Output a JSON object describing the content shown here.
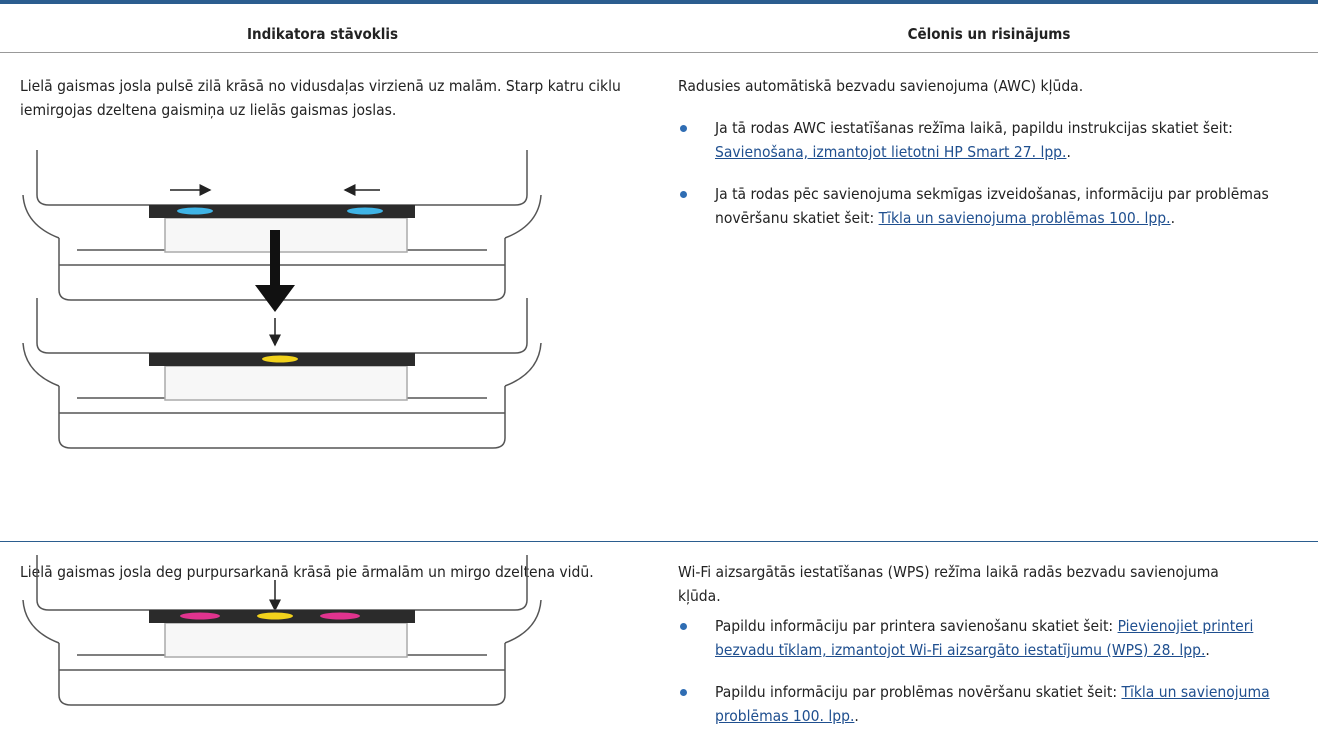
{
  "table": {
    "headers": [
      "Indikatora stāvoklis",
      "Cēlonis un risinājums"
    ],
    "rows": [
      {
        "state": "Lielā gaismas josla pulsē zilā krāsā no vidusdaļas virzienā uz malām. Starp katru ciklu iemirgojas dzeltena gaismiņa uz lielās gaismas joslas.",
        "cause": "Radusies automātiskā bezvadu savienojuma (AWC) kļūda.",
        "items": [
          {
            "text": "Ja tā rodas AWC iestatīšanas režīma laikā, papildu instrukcijas skatiet šeit: ",
            "link": "Savienošana, izmantojot lietotni HP Smart 27. lpp.",
            "end": "."
          },
          {
            "text": "Ja tā rodas pēc savienojuma sekmīgas izveidošanas, informāciju par problēmas novēršanu skatiet šeit: ",
            "link": "Tīkla un savienojuma problēmas 100. lpp.",
            "end": "."
          }
        ]
      },
      {
        "state": "Lielā gaismas josla deg purpursarkanā krāsā pie ārmalām un mirgo dzeltena vidū.",
        "cause": "Wi-Fi aizsargātās iestatīšanas (WPS) režīma laikā radās bezvadu savienojuma kļūda.",
        "items": [
          {
            "text": "Papildu informāciju par printera savienošanu skatiet šeit: ",
            "link": "Pievienojiet printeri bezvadu tīklam, izmantojot Wi-Fi aizsargāto iestatījumu (WPS) 28. lpp.",
            "end": "."
          },
          {
            "text": "Papildu informāciju par problēmas novēršanu skatiet šeit: ",
            "link": "Tīkla un savienojuma problēmas 100. lpp.",
            "end": "."
          }
        ]
      }
    ]
  }
}
